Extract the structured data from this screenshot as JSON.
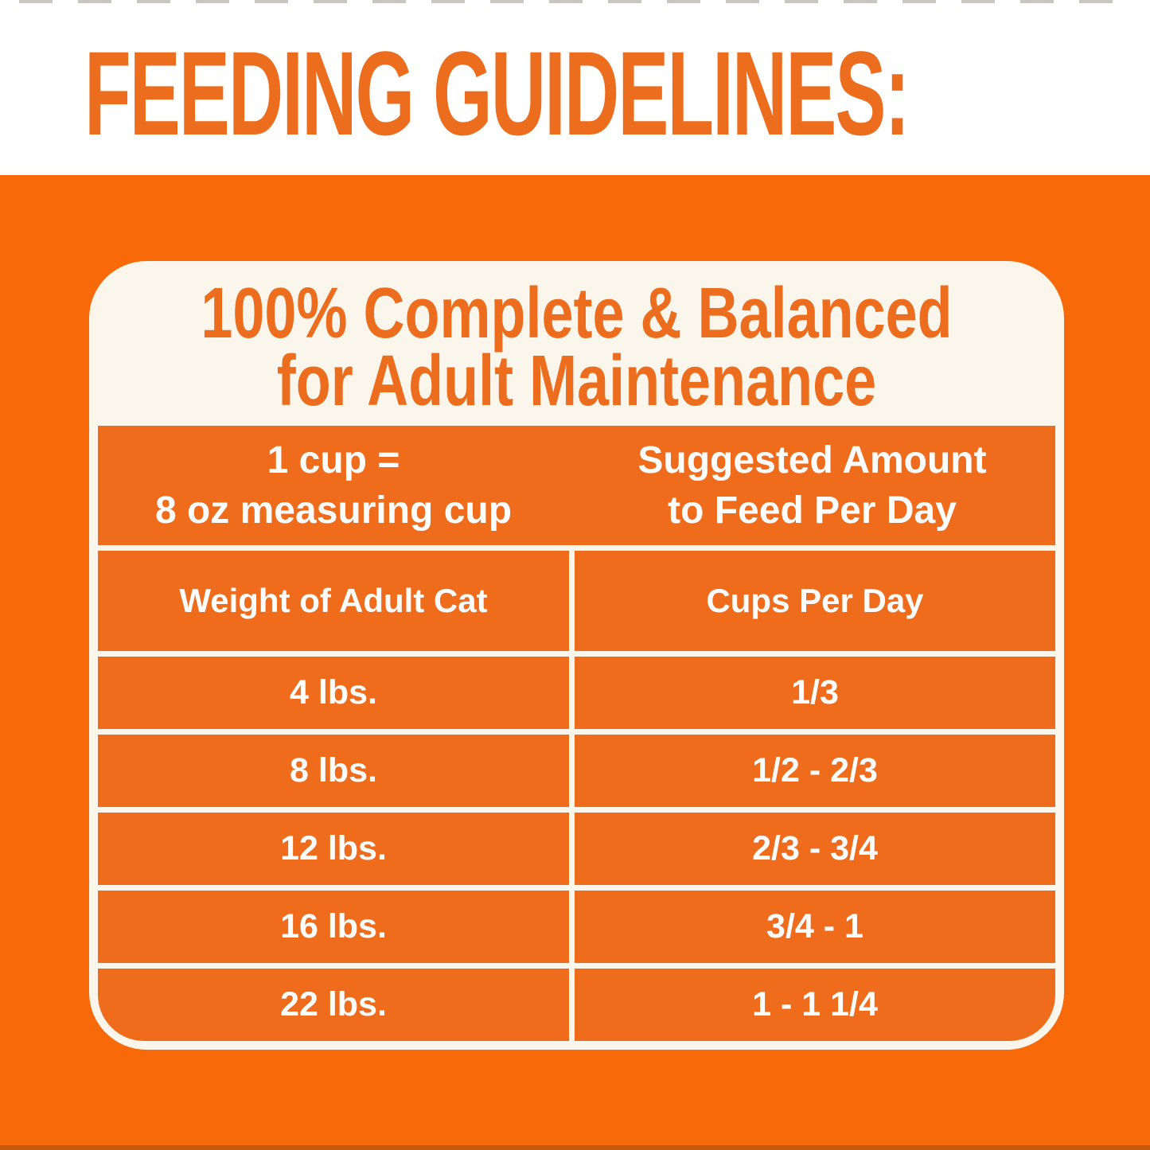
{
  "page": {
    "title": "FEEDING GUIDELINES:",
    "colors": {
      "accent_orange": "#ED6D1E",
      "background_orange": "#F8690A",
      "table_cell_orange": "#EF6C1C",
      "card_line_cream": "#FBF6EC",
      "text_white": "#FFFFFF"
    }
  },
  "card": {
    "heading": {
      "line1": "100% Complete & Balanced",
      "line2": "for Adult Maintenance"
    },
    "table": {
      "header_left": [
        "1 cup =",
        "8 oz measuring cup"
      ],
      "header_right": [
        "Suggested Amount",
        "to Feed Per Day"
      ],
      "columns": [
        "Weight of Adult Cat",
        "Cups Per Day"
      ],
      "rows": [
        {
          "weight": "4 lbs.",
          "cups": "1/3"
        },
        {
          "weight": "8 lbs.",
          "cups": "1/2 - 2/3"
        },
        {
          "weight": "12 lbs.",
          "cups": "2/3 - 3/4"
        },
        {
          "weight": "16 lbs.",
          "cups": "3/4 - 1"
        },
        {
          "weight": "22 lbs.",
          "cups": "1 - 1 1/4"
        }
      ]
    }
  }
}
